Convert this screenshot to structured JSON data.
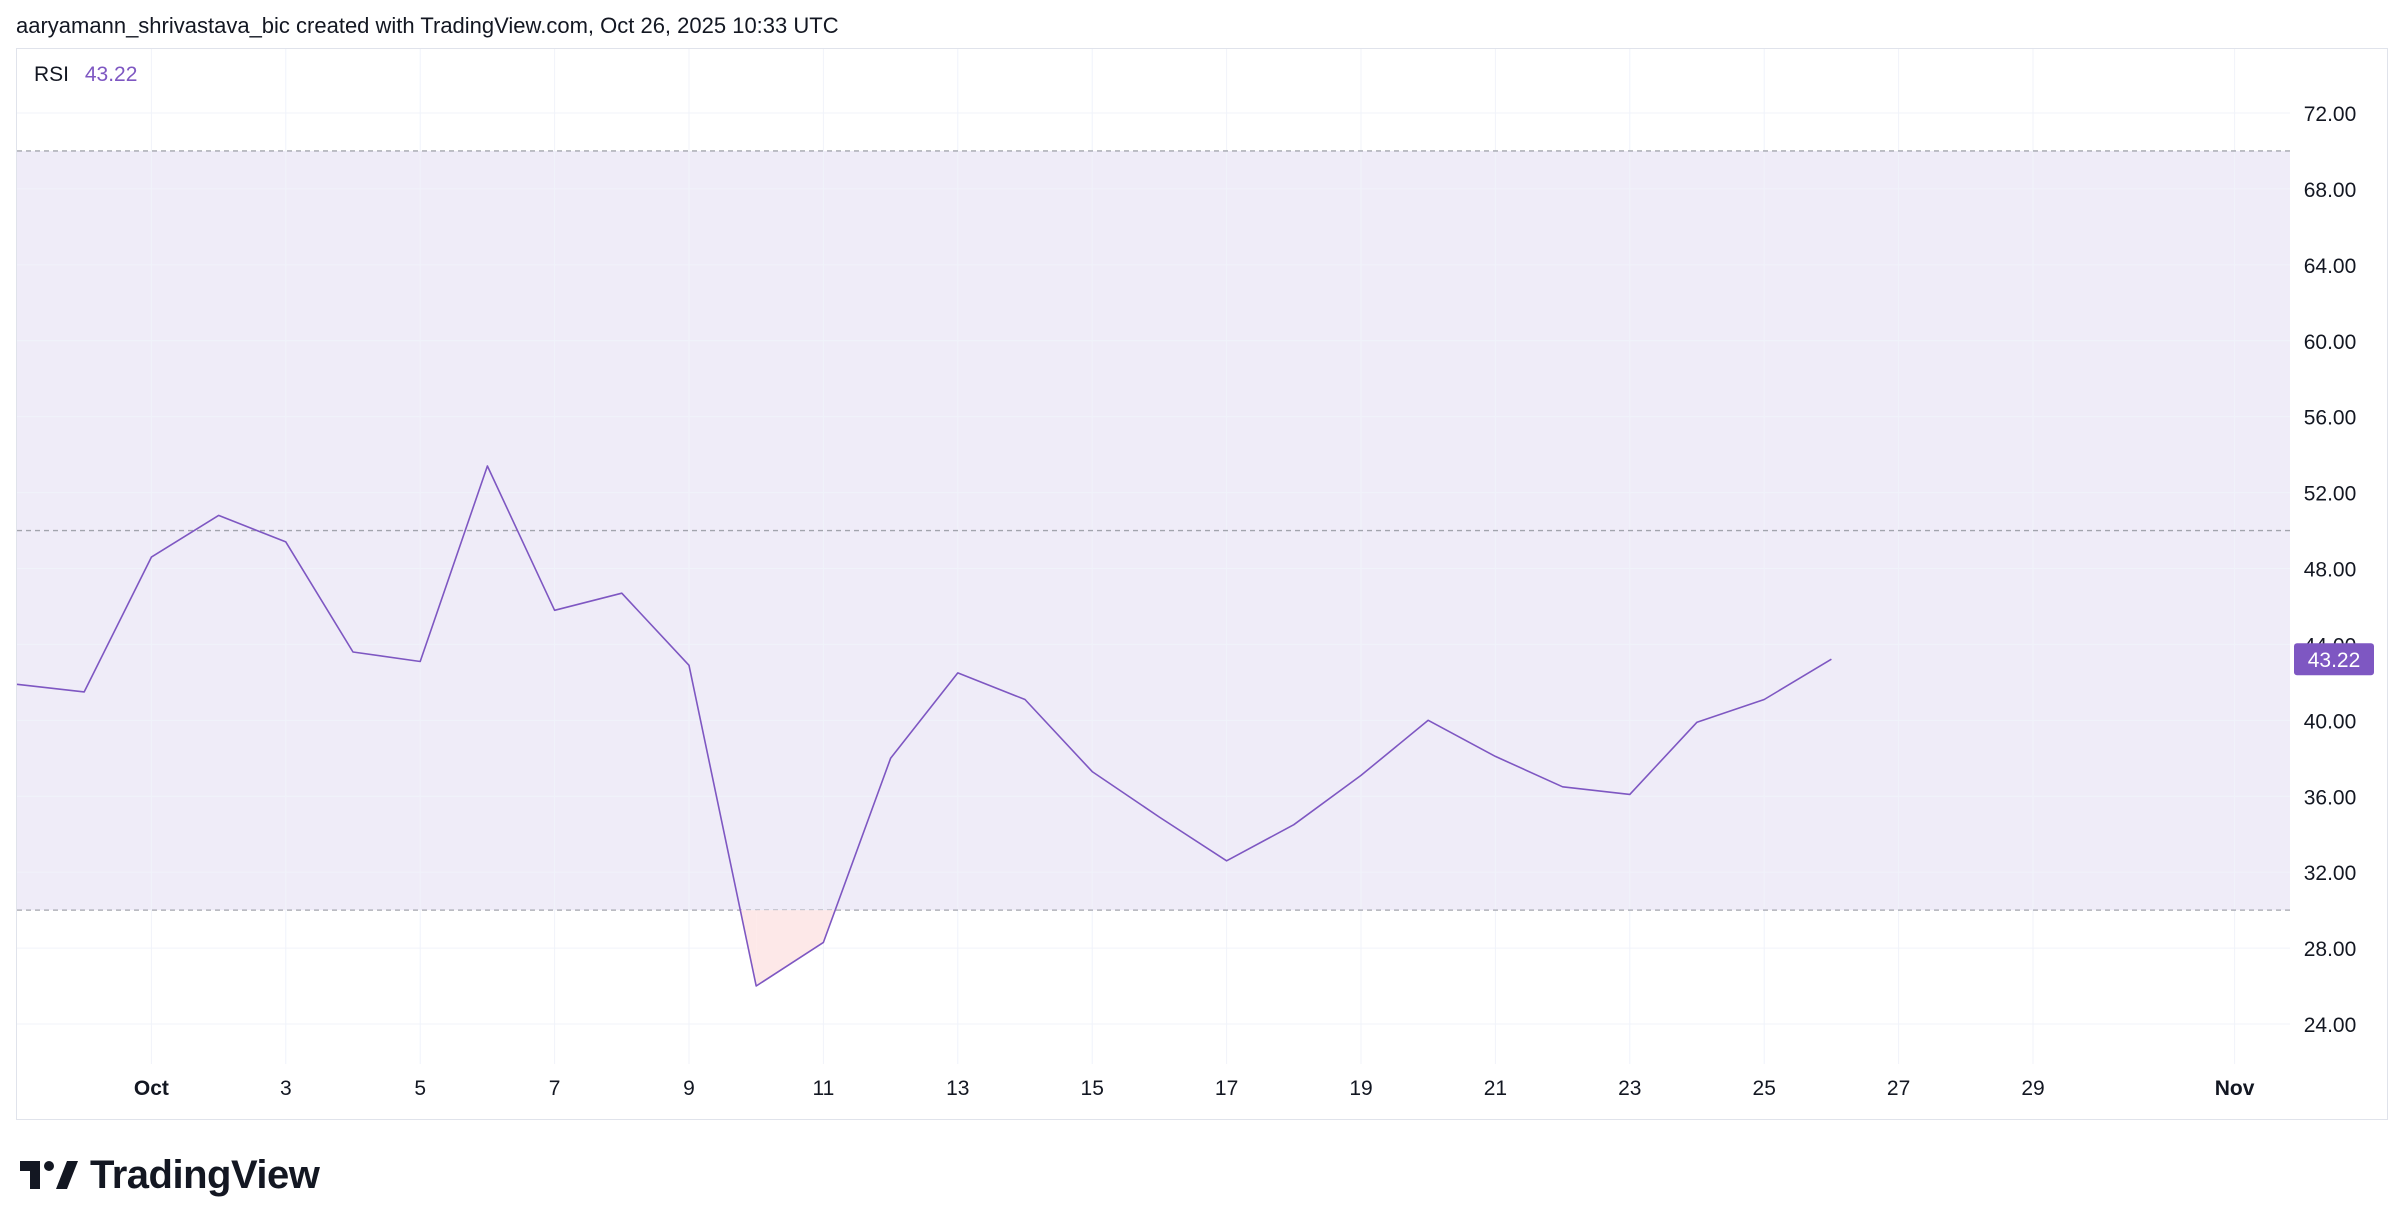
{
  "header": {
    "attribution": "aaryamann_shrivastava_bic created with TradingView.com, Oct 26, 2025 10:33 UTC"
  },
  "legend": {
    "indicator": "RSI",
    "value": "43.22"
  },
  "brand": {
    "name": "TradingView",
    "logo_icon": "tradingview-logo-icon"
  },
  "colors": {
    "line": "#7e57c2",
    "band_fill": "#efecf8",
    "oversold_fill": "#fde8e8",
    "grid": "#f0f3fa",
    "level_line": "#9598a1",
    "axis_text": "#131722",
    "last_value_bg": "#7e57c2",
    "last_value_text": "#ffffff"
  },
  "chart_data": {
    "type": "line",
    "title": "",
    "xlabel": "",
    "ylabel": "",
    "ylim": [
      22,
      75
    ],
    "xlim": [
      "2025-09-29",
      "2025-11-03"
    ],
    "grid": true,
    "yticks": [
      "24.00",
      "28.00",
      "32.00",
      "36.00",
      "40.00",
      "44.00",
      "48.00",
      "52.00",
      "56.00",
      "60.00",
      "64.00",
      "68.00",
      "72.00"
    ],
    "xticks": [
      {
        "date": "2025-10-01",
        "label": "Oct",
        "bold": true
      },
      {
        "date": "2025-10-03",
        "label": "3"
      },
      {
        "date": "2025-10-05",
        "label": "5"
      },
      {
        "date": "2025-10-07",
        "label": "7"
      },
      {
        "date": "2025-10-09",
        "label": "9"
      },
      {
        "date": "2025-10-11",
        "label": "11"
      },
      {
        "date": "2025-10-13",
        "label": "13"
      },
      {
        "date": "2025-10-15",
        "label": "15"
      },
      {
        "date": "2025-10-17",
        "label": "17"
      },
      {
        "date": "2025-10-19",
        "label": "19"
      },
      {
        "date": "2025-10-21",
        "label": "21"
      },
      {
        "date": "2025-10-23",
        "label": "23"
      },
      {
        "date": "2025-10-25",
        "label": "25"
      },
      {
        "date": "2025-10-27",
        "label": "27"
      },
      {
        "date": "2025-10-29",
        "label": "29"
      },
      {
        "date": "2025-11-01",
        "label": "Nov",
        "bold": true
      }
    ],
    "levels": {
      "upper": 70,
      "middle": 50,
      "lower": 30
    },
    "series": [
      {
        "name": "RSI",
        "points": [
          {
            "x": "2025-09-29",
            "y": 41.9
          },
          {
            "x": "2025-09-30",
            "y": 41.5
          },
          {
            "x": "2025-10-01",
            "y": 48.6
          },
          {
            "x": "2025-10-02",
            "y": 50.8
          },
          {
            "x": "2025-10-03",
            "y": 49.4
          },
          {
            "x": "2025-10-04",
            "y": 43.6
          },
          {
            "x": "2025-10-05",
            "y": 43.1
          },
          {
            "x": "2025-10-06",
            "y": 53.4
          },
          {
            "x": "2025-10-07",
            "y": 45.8
          },
          {
            "x": "2025-10-08",
            "y": 46.7
          },
          {
            "x": "2025-10-09",
            "y": 42.9
          },
          {
            "x": "2025-10-10",
            "y": 26.0
          },
          {
            "x": "2025-10-11",
            "y": 28.3
          },
          {
            "x": "2025-10-12",
            "y": 38.0
          },
          {
            "x": "2025-10-13",
            "y": 42.5
          },
          {
            "x": "2025-10-14",
            "y": 41.1
          },
          {
            "x": "2025-10-15",
            "y": 37.3
          },
          {
            "x": "2025-10-16",
            "y": 34.9
          },
          {
            "x": "2025-10-17",
            "y": 32.6
          },
          {
            "x": "2025-10-18",
            "y": 34.5
          },
          {
            "x": "2025-10-19",
            "y": 37.1
          },
          {
            "x": "2025-10-20",
            "y": 40.0
          },
          {
            "x": "2025-10-21",
            "y": 38.1
          },
          {
            "x": "2025-10-22",
            "y": 36.5
          },
          {
            "x": "2025-10-23",
            "y": 36.1
          },
          {
            "x": "2025-10-24",
            "y": 39.9
          },
          {
            "x": "2025-10-25",
            "y": 41.1
          },
          {
            "x": "2025-10-26",
            "y": 43.22
          }
        ]
      }
    ],
    "last_value_label": "43.22"
  }
}
